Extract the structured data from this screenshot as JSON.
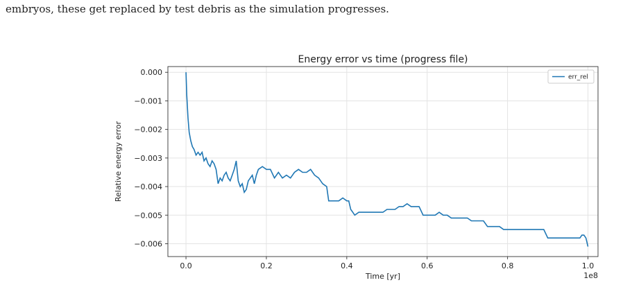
{
  "document": {
    "top_text": "embryos, these get replaced by test debris as the simulation progresses."
  },
  "chart_data": {
    "type": "line",
    "title": "Energy error vs time (progress file)",
    "xlabel": "Time [yr]",
    "ylabel": "Relative energy error",
    "x_offset_label": "1e8",
    "xlim": [
      -0.045,
      1.025
    ],
    "ylim": [
      -0.00645,
      0.0002
    ],
    "xticks": [
      0.0,
      0.2,
      0.4,
      0.6,
      0.8,
      1.0
    ],
    "xtick_labels": [
      "0.0",
      "0.2",
      "0.4",
      "0.6",
      "0.8",
      "1.0"
    ],
    "yticks": [
      0.0,
      -0.001,
      -0.002,
      -0.003,
      -0.004,
      -0.005,
      -0.006
    ],
    "ytick_labels": [
      "0.000",
      "−0.001",
      "−0.002",
      "−0.003",
      "−0.004",
      "−0.005",
      "−0.006"
    ],
    "grid": true,
    "legend_position": "top-right",
    "colors": {
      "series": "#1f77b4",
      "grid": "#e3e3e3",
      "axis": "#333333"
    },
    "series": [
      {
        "name": "err_rel",
        "x": [
          0.0,
          0.002,
          0.005,
          0.008,
          0.012,
          0.016,
          0.02,
          0.025,
          0.03,
          0.035,
          0.04,
          0.045,
          0.05,
          0.055,
          0.06,
          0.065,
          0.07,
          0.075,
          0.08,
          0.085,
          0.09,
          0.095,
          0.1,
          0.105,
          0.11,
          0.115,
          0.12,
          0.125,
          0.13,
          0.135,
          0.14,
          0.145,
          0.15,
          0.155,
          0.16,
          0.165,
          0.17,
          0.175,
          0.18,
          0.19,
          0.2,
          0.21,
          0.22,
          0.23,
          0.24,
          0.25,
          0.26,
          0.27,
          0.28,
          0.29,
          0.3,
          0.31,
          0.32,
          0.33,
          0.34,
          0.35,
          0.355,
          0.36,
          0.37,
          0.38,
          0.39,
          0.4,
          0.405,
          0.41,
          0.415,
          0.42,
          0.43,
          0.44,
          0.45,
          0.46,
          0.47,
          0.48,
          0.49,
          0.5,
          0.51,
          0.52,
          0.53,
          0.54,
          0.55,
          0.56,
          0.57,
          0.58,
          0.59,
          0.6,
          0.61,
          0.62,
          0.63,
          0.64,
          0.65,
          0.66,
          0.67,
          0.68,
          0.69,
          0.7,
          0.71,
          0.72,
          0.73,
          0.74,
          0.75,
          0.76,
          0.77,
          0.78,
          0.79,
          0.8,
          0.81,
          0.82,
          0.83,
          0.84,
          0.85,
          0.86,
          0.87,
          0.88,
          0.89,
          0.9,
          0.91,
          0.92,
          0.93,
          0.94,
          0.95,
          0.96,
          0.97,
          0.98,
          0.985,
          0.99,
          0.995,
          1.0
        ],
        "y": [
          0.0,
          -0.0008,
          -0.0016,
          -0.0021,
          -0.0024,
          -0.0026,
          -0.0027,
          -0.0029,
          -0.0028,
          -0.0029,
          -0.0028,
          -0.0031,
          -0.003,
          -0.0032,
          -0.0033,
          -0.0031,
          -0.0032,
          -0.0034,
          -0.0039,
          -0.0037,
          -0.0038,
          -0.0036,
          -0.0035,
          -0.0037,
          -0.0038,
          -0.0036,
          -0.0034,
          -0.0031,
          -0.0038,
          -0.004,
          -0.0039,
          -0.0042,
          -0.0041,
          -0.0038,
          -0.0037,
          -0.0036,
          -0.0039,
          -0.0036,
          -0.0034,
          -0.0033,
          -0.0034,
          -0.0034,
          -0.0037,
          -0.0035,
          -0.0037,
          -0.0036,
          -0.0037,
          -0.0035,
          -0.0034,
          -0.0035,
          -0.0035,
          -0.0034,
          -0.0036,
          -0.0037,
          -0.0039,
          -0.004,
          -0.0045,
          -0.0045,
          -0.0045,
          -0.0045,
          -0.0044,
          -0.0045,
          -0.0045,
          -0.0048,
          -0.0049,
          -0.005,
          -0.0049,
          -0.0049,
          -0.0049,
          -0.0049,
          -0.0049,
          -0.0049,
          -0.0049,
          -0.0048,
          -0.0048,
          -0.0048,
          -0.0047,
          -0.0047,
          -0.0046,
          -0.0047,
          -0.0047,
          -0.0047,
          -0.005,
          -0.005,
          -0.005,
          -0.005,
          -0.0049,
          -0.005,
          -0.005,
          -0.0051,
          -0.0051,
          -0.0051,
          -0.0051,
          -0.0051,
          -0.0052,
          -0.0052,
          -0.0052,
          -0.0052,
          -0.0054,
          -0.0054,
          -0.0054,
          -0.0054,
          -0.0055,
          -0.0055,
          -0.0055,
          -0.0055,
          -0.0055,
          -0.0055,
          -0.0055,
          -0.0055,
          -0.0055,
          -0.0055,
          -0.0055,
          -0.0058,
          -0.0058,
          -0.0058,
          -0.0058,
          -0.0058,
          -0.0058,
          -0.0058,
          -0.0058,
          -0.0058,
          -0.0057,
          -0.0057,
          -0.0058,
          -0.0061
        ]
      }
    ]
  }
}
